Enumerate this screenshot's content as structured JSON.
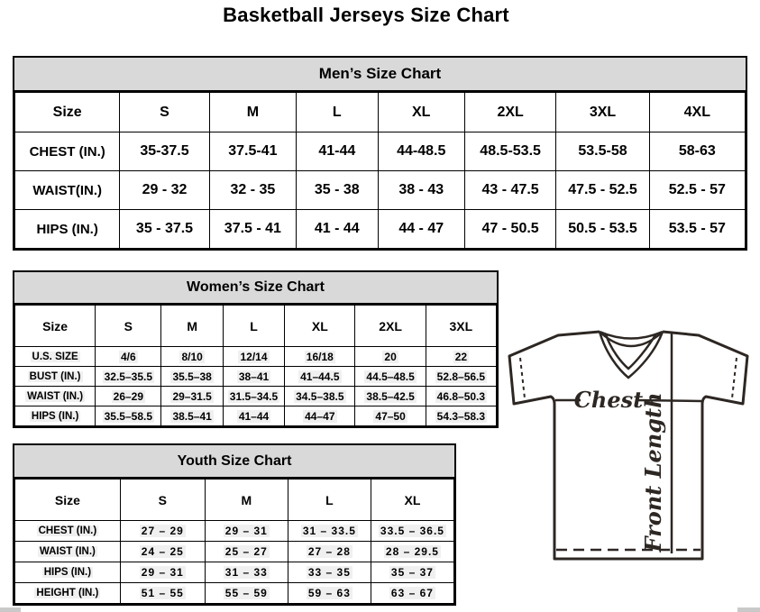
{
  "page": {
    "title": "Basketball Jerseys Size Chart"
  },
  "tables": {
    "mens": {
      "title": "Men’s Size Chart",
      "columns": [
        "Size",
        "S",
        "M",
        "L",
        "XL",
        "2XL",
        "3XL",
        "4XL"
      ],
      "rows": [
        {
          "label": "CHEST (IN.)",
          "values": [
            "35-37.5",
            "37.5-41",
            "41-44",
            "44-48.5",
            "48.5-53.5",
            "53.5-58",
            "58-63"
          ]
        },
        {
          "label": "WAIST(IN.)",
          "values": [
            "29 - 32",
            "32 - 35",
            "35 - 38",
            "38 - 43",
            "43 - 47.5",
            "47.5 - 52.5",
            "52.5 - 57"
          ]
        },
        {
          "label": "HIPS (IN.)",
          "values": [
            "35 - 37.5",
            "37.5 - 41",
            "41 - 44",
            "44 - 47",
            "47 - 50.5",
            "50.5 - 53.5",
            "53.5 - 57"
          ]
        }
      ]
    },
    "womens": {
      "title": "Women’s Size Chart",
      "columns": [
        "Size",
        "S",
        "M",
        "L",
        "XL",
        "2XL",
        "3XL"
      ],
      "rows": [
        {
          "label": "U.S. SIZE",
          "values": [
            "4/6",
            "8/10",
            "12/14",
            "16/18",
            "20",
            "22"
          ]
        },
        {
          "label": "BUST (IN.)",
          "values": [
            "32.5–35.5",
            "35.5–38",
            "38–41",
            "41–44.5",
            "44.5–48.5",
            "52.8–56.5"
          ]
        },
        {
          "label": "WAIST (IN.)",
          "values": [
            "26–29",
            "29–31.5",
            "31.5–34.5",
            "34.5–38.5",
            "38.5–42.5",
            "46.8–50.3"
          ]
        },
        {
          "label": "HIPS (IN.)",
          "values": [
            "35.5–58.5",
            "38.5–41",
            "41–44",
            "44–47",
            "47–50",
            "54.3–58.3"
          ]
        }
      ]
    },
    "youth": {
      "title": "Youth Size Chart",
      "columns": [
        "Size",
        "S",
        "M",
        "L",
        "XL"
      ],
      "rows": [
        {
          "label": "CHEST (IN.)",
          "values": [
            "27 – 29",
            "29 – 31",
            "31 – 33.5",
            "33.5 – 36.5"
          ]
        },
        {
          "label": "WAIST (IN.)",
          "values": [
            "24 – 25",
            "25 – 27",
            "27 – 28",
            "28 – 29.5"
          ]
        },
        {
          "label": "HIPS (IN.)",
          "values": [
            "29 – 31",
            "31 – 33",
            "33 – 35",
            "35 – 37"
          ]
        },
        {
          "label": "HEIGHT (IN.)",
          "values": [
            "51 – 55",
            "55 – 59",
            "59 – 63",
            "63 – 67"
          ]
        }
      ]
    }
  },
  "diagram": {
    "chest_label": "Chest",
    "front_length_label": "Front Length"
  },
  "colors": {
    "table_header_bg": "#d9d9d9",
    "table_border": "#000000",
    "cell_highlight": "#f0f0f0",
    "diagram_line": "#2d2723",
    "scrollbar": "#c9c9c9"
  }
}
